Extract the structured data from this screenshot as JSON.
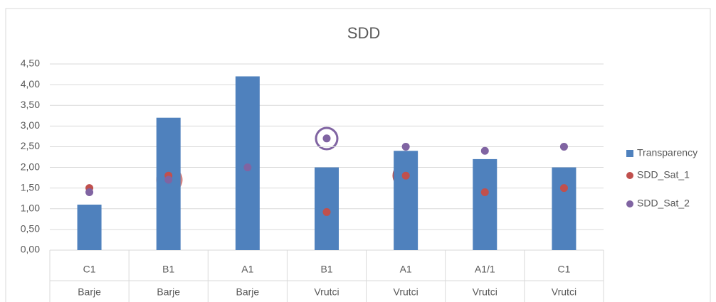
{
  "chart_data": {
    "type": "combo",
    "title": "SDD",
    "categories": [
      "C1",
      "B1",
      "A1",
      "B1",
      "A1",
      "A1/1",
      "C1"
    ],
    "category_groups": [
      "Barje",
      "Barje",
      "Barje",
      "Vrutci",
      "Vrutci",
      "Vrutci",
      "Vrutci"
    ],
    "series": [
      {
        "name": "Transparency",
        "type": "bar",
        "color": "#4f81bd",
        "values": [
          1.1,
          3.2,
          4.2,
          2.0,
          2.4,
          2.2,
          2.0
        ]
      },
      {
        "name": "SDD_Sat_1",
        "type": "scatter",
        "color": "#c0504d",
        "values": [
          1.5,
          1.8,
          null,
          0.92,
          1.8,
          1.4,
          1.5
        ]
      },
      {
        "name": "SDD_Sat_2",
        "type": "scatter",
        "color": "#8064a2",
        "values": [
          1.4,
          1.7,
          2.0,
          2.7,
          2.5,
          2.4,
          2.5
        ]
      }
    ],
    "ylim": [
      0,
      4.5
    ],
    "yticks": [
      {
        "value": 0,
        "label": "0,00"
      },
      {
        "value": 0.5,
        "label": "0,50"
      },
      {
        "value": 1,
        "label": "1,00"
      },
      {
        "value": 1.5,
        "label": "1,50"
      },
      {
        "value": 2,
        "label": "2,00"
      },
      {
        "value": 2.5,
        "label": "2,50"
      },
      {
        "value": 3,
        "label": "3,00"
      },
      {
        "value": 3.5,
        "label": "3,50"
      },
      {
        "value": 4,
        "label": "4,00"
      },
      {
        "value": 4.5,
        "label": "4,50"
      }
    ],
    "grid": true,
    "legend": "right"
  }
}
